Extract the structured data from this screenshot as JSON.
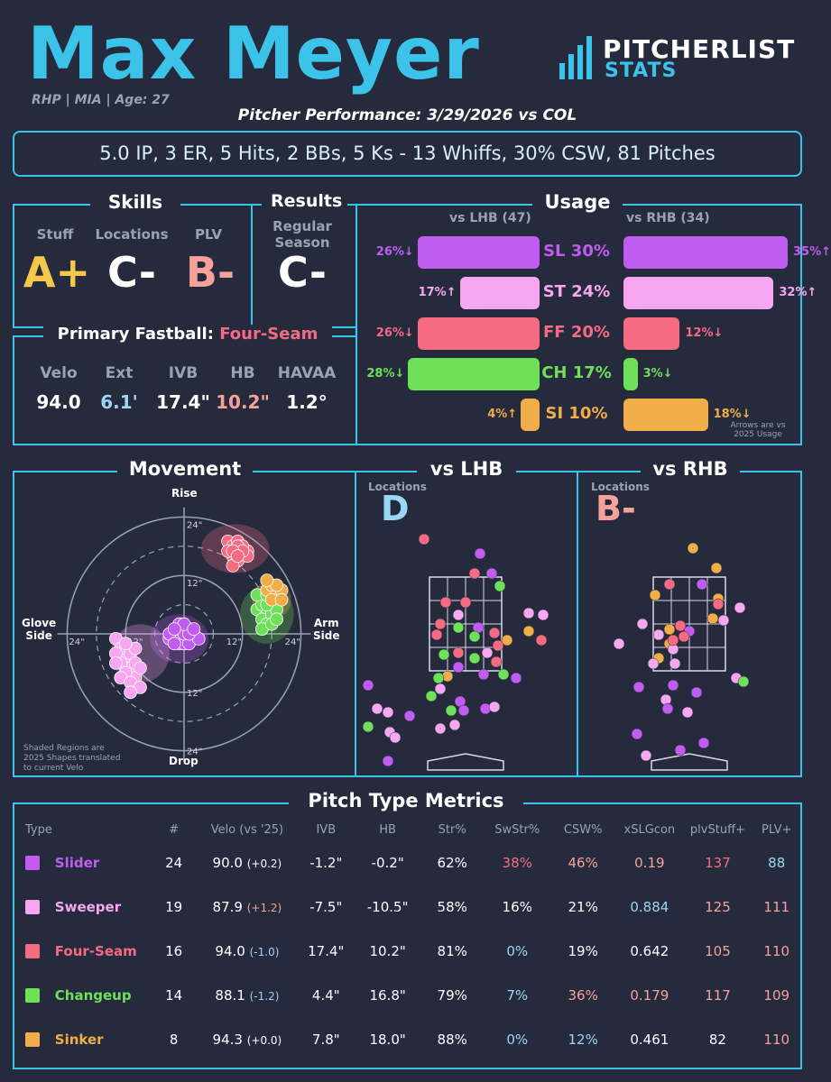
{
  "header": {
    "name": "Max Meyer",
    "subtitle": "RHP | MIA | Age: 27",
    "performance_title": "Pitcher Performance: 3/29/2026 vs COL",
    "logo_line1": "PITCHERLIST",
    "logo_line2": "STATS",
    "statline": "5.0 IP, 3 ER, 5 Hits, 2 BBs, 5 Ks - 13 Whiffs, 30% CSW, 81 Pitches"
  },
  "colors": {
    "accent": "#3cc3ea",
    "slider": "#c05cf0",
    "sweeper": "#f7a6f0",
    "fourseam": "#f56b82",
    "changeup": "#6fe05a",
    "sinker": "#f0ad48",
    "gradeA": "#f5c84a",
    "gradeC": "#ffffff",
    "gradeB": "#f5a29a",
    "gradeD": "#9ad6f5"
  },
  "skills": {
    "title": "Skills",
    "labels": [
      "Stuff",
      "Locations",
      "PLV"
    ],
    "grades": [
      "A+",
      "C-",
      "B-"
    ]
  },
  "results": {
    "title": "Results",
    "label_line1": "Regular",
    "label_line2": "Season",
    "grade": "C-"
  },
  "fastball": {
    "title": "Primary Fastball:",
    "pitch": "Four-Seam",
    "labels": [
      "Velo",
      "Ext",
      "IVB",
      "HB",
      "HAVAA"
    ],
    "values": [
      "94.0",
      "6.1'",
      "17.4\"",
      "10.2\"",
      "1.2°"
    ]
  },
  "usage": {
    "title": "Usage",
    "lhb_label": "vs LHB (47)",
    "rhb_label": "vs RHB (34)",
    "note_line1": "Arrows are vs",
    "note_line2": "2025 Usage",
    "pitches": [
      {
        "name": "SL 30%",
        "lhb": "26%↓",
        "rhb": "35%↑",
        "lhb_val": 26,
        "rhb_val": 35,
        "color": "#c05cf0"
      },
      {
        "name": "ST 24%",
        "lhb": "17%↑",
        "rhb": "32%↑",
        "lhb_val": 17,
        "rhb_val": 32,
        "color": "#f7a6f0"
      },
      {
        "name": "FF 20%",
        "lhb": "26%↓",
        "rhb": "12%↓",
        "lhb_val": 26,
        "rhb_val": 12,
        "color": "#f56b82"
      },
      {
        "name": "CH 17%",
        "lhb": "28%↓",
        "rhb": "3%↓",
        "lhb_val": 28,
        "rhb_val": 3,
        "color": "#6fe05a"
      },
      {
        "name": "SI 10%",
        "lhb": "4%↑",
        "rhb": "18%↓",
        "lhb_val": 4,
        "rhb_val": 18,
        "color": "#f0ad48"
      }
    ]
  },
  "movement": {
    "title": "Movement",
    "rise": "Rise",
    "drop": "Drop",
    "glove_line1": "Glove",
    "glove_line2": "Side",
    "arm_line1": "Arm",
    "arm_line2": "Side",
    "ticks": [
      "24\"",
      "12\"",
      "12\"",
      "24\"",
      "24\"",
      "12\"",
      "12\"",
      "24\""
    ],
    "note_line1": "Shaded Regions are",
    "note_line2": "2025 Shapes translated",
    "note_line3": "to current Velo"
  },
  "locations": {
    "lhb_title": "vs LHB",
    "rhb_title": "vs RHB",
    "label": "Locations",
    "lhb_grade": "D",
    "rhb_grade": "B-"
  },
  "metrics": {
    "title": "Pitch Type Metrics",
    "columns": [
      "Type",
      "#",
      "Velo (vs '25)",
      "IVB",
      "HB",
      "Str%",
      "SwStr%",
      "CSW%",
      "xSLGcon",
      "plvStuff+",
      "PLV+"
    ],
    "rows": [
      {
        "type": "Slider",
        "n": "24",
        "velo": "90.0",
        "delta": "(+0.2)",
        "ivb": "-1.2\"",
        "hb": "-0.2\"",
        "str": "62%",
        "swstr": "38%",
        "csw": "46%",
        "xslg": "0.19",
        "stuff": "137",
        "plv": "88",
        "color": "#c05cf0",
        "delta_color": "#ffffff",
        "swstr_color": "#f56b82",
        "csw_color": "#f5a29a",
        "xslg_color": "#f5a29a",
        "stuff_color": "#f56b82",
        "plv_color": "#9ad6f5"
      },
      {
        "type": "Sweeper",
        "n": "19",
        "velo": "87.9",
        "delta": "(+1.2)",
        "ivb": "-7.5\"",
        "hb": "-10.5\"",
        "str": "58%",
        "swstr": "16%",
        "csw": "21%",
        "xslg": "0.884",
        "stuff": "125",
        "plv": "111",
        "color": "#f7a6f0",
        "delta_color": "#f5a29a",
        "swstr_color": "#ffffff",
        "csw_color": "#ffffff",
        "xslg_color": "#9ad6f5",
        "stuff_color": "#f5a29a",
        "plv_color": "#f5a29a"
      },
      {
        "type": "Four-Seam",
        "n": "16",
        "velo": "94.0",
        "delta": "(-1.0)",
        "ivb": "17.4\"",
        "hb": "10.2\"",
        "str": "81%",
        "swstr": "0%",
        "csw": "19%",
        "xslg": "0.642",
        "stuff": "105",
        "plv": "110",
        "color": "#f56b82",
        "delta_color": "#9ad6f5",
        "swstr_color": "#9ad6f5",
        "csw_color": "#ffffff",
        "xslg_color": "#ffffff",
        "stuff_color": "#f5a29a",
        "plv_color": "#f5a29a"
      },
      {
        "type": "Changeup",
        "n": "14",
        "velo": "88.1",
        "delta": "(-1.2)",
        "ivb": "4.4\"",
        "hb": "16.8\"",
        "str": "79%",
        "swstr": "7%",
        "csw": "36%",
        "xslg": "0.179",
        "stuff": "117",
        "plv": "109",
        "color": "#6fe05a",
        "delta_color": "#9ad6f5",
        "swstr_color": "#9ad6f5",
        "csw_color": "#f5a29a",
        "xslg_color": "#f5a29a",
        "stuff_color": "#f5a29a",
        "plv_color": "#f5a29a"
      },
      {
        "type": "Sinker",
        "n": "8",
        "velo": "94.3",
        "delta": "(+0.0)",
        "ivb": "7.8\"",
        "hb": "18.0\"",
        "str": "88%",
        "swstr": "0%",
        "csw": "12%",
        "xslg": "0.461",
        "stuff": "82",
        "plv": "110",
        "color": "#f0ad48",
        "delta_color": "#ffffff",
        "swstr_color": "#9ad6f5",
        "csw_color": "#9ad6f5",
        "xslg_color": "#ffffff",
        "stuff_color": "#ffffff",
        "plv_color": "#f5a29a"
      }
    ]
  }
}
